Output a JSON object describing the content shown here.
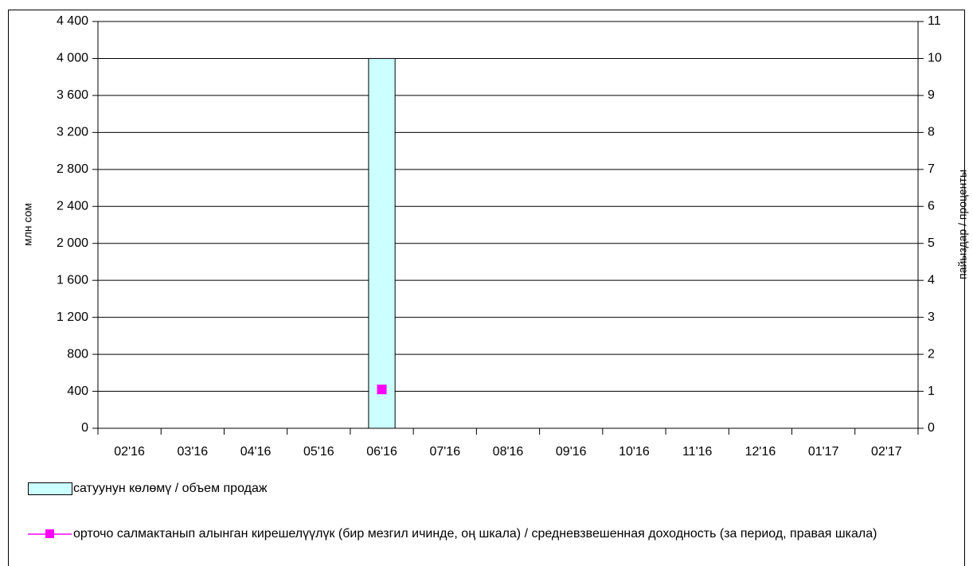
{
  "chart_data": {
    "type": "bar_line",
    "y_label": "млн сом",
    "y2_label": "пайыздар / проценты",
    "categories": [
      "02'16",
      "03'16",
      "04'16",
      "05'16",
      "06'16",
      "07'16",
      "08'16",
      "09'16",
      "10'16",
      "11'16",
      "12'16",
      "01'17",
      "02'17"
    ],
    "series": [
      {
        "name": "сатуунун көлөмү /  объем продаж",
        "color": "#ccffff",
        "type": "bar",
        "values": [
          null,
          null,
          null,
          null,
          4000,
          null,
          null,
          null,
          null,
          null,
          null,
          null,
          null
        ]
      },
      {
        "name": "орточо салмактанып алынган кирешелүүлүк (бир мезгил ичинде, оң шкала) / средневзвешенная доходность (за период, правая шкала)",
        "color": "#ff00ff",
        "type": "line",
        "axis": "y2",
        "values": [
          null,
          null,
          null,
          null,
          1.05,
          null,
          null,
          null,
          null,
          null,
          null,
          null,
          null
        ]
      }
    ],
    "ylim": [
      0,
      4400
    ],
    "yticks": [
      0,
      400,
      800,
      {
        "value": 1200,
        "label": "1 200"
      },
      {
        "value": 1600,
        "label": "1 600"
      },
      {
        "value": 2000,
        "label": "2 000"
      },
      {
        "value": 2400,
        "label": "2 400"
      },
      {
        "value": 2800,
        "label": "2 800"
      },
      {
        "value": 3200,
        "label": "3 200"
      },
      {
        "value": 3600,
        "label": "3 600"
      },
      {
        "value": 4000,
        "label": "4 000"
      },
      {
        "value": 4400,
        "label": "4 400"
      }
    ],
    "y2lim": [
      0,
      11
    ],
    "y2ticks": [
      0,
      1,
      2,
      3,
      4,
      5,
      6,
      7,
      8,
      9,
      10,
      11
    ],
    "grid": true
  }
}
